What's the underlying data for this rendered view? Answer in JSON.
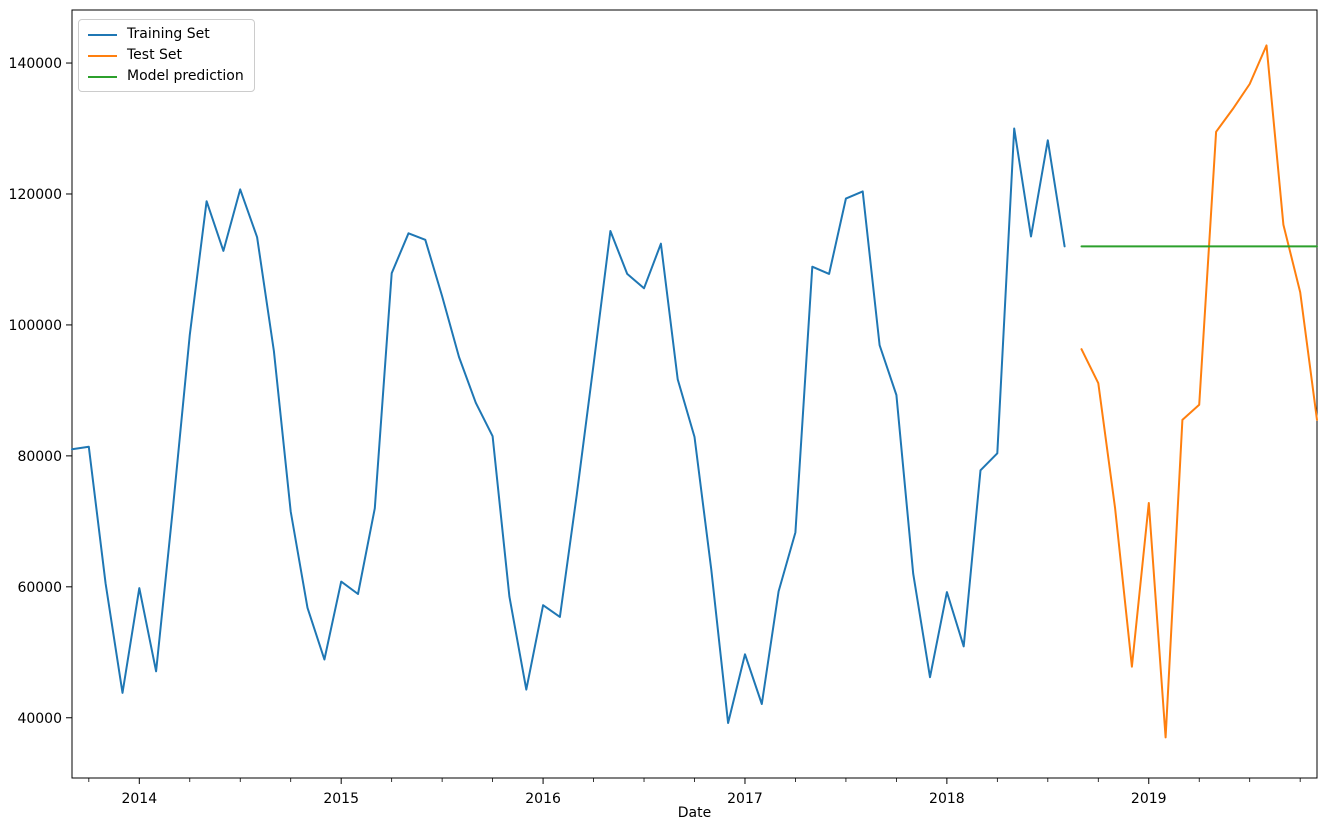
{
  "chart_data": {
    "type": "line",
    "title": "",
    "xlabel": "Date",
    "ylabel": "",
    "grid": false,
    "legend_position": "top-left",
    "ylim": [
      30800,
      148100
    ],
    "yticks": [
      {
        "value": 40000,
        "label": "40000"
      },
      {
        "value": 60000,
        "label": "60000"
      },
      {
        "value": 80000,
        "label": "80000"
      },
      {
        "value": 100000,
        "label": "100000"
      },
      {
        "value": 120000,
        "label": "120000"
      },
      {
        "value": 140000,
        "label": "140000"
      }
    ],
    "xticks_major": [
      {
        "month": "2014-01",
        "label": "2014"
      },
      {
        "month": "2015-01",
        "label": "2015"
      },
      {
        "month": "2016-01",
        "label": "2016"
      },
      {
        "month": "2017-01",
        "label": "2017"
      },
      {
        "month": "2018-01",
        "label": "2018"
      },
      {
        "month": "2019-01",
        "label": "2019"
      }
    ],
    "xticks_minor_every_months": 3,
    "x_monthly": [
      "2013-09",
      "2013-10",
      "2013-11",
      "2013-12",
      "2014-01",
      "2014-02",
      "2014-03",
      "2014-04",
      "2014-05",
      "2014-06",
      "2014-07",
      "2014-08",
      "2014-09",
      "2014-10",
      "2014-11",
      "2014-12",
      "2015-01",
      "2015-02",
      "2015-03",
      "2015-04",
      "2015-05",
      "2015-06",
      "2015-07",
      "2015-08",
      "2015-09",
      "2015-10",
      "2015-11",
      "2015-12",
      "2016-01",
      "2016-02",
      "2016-03",
      "2016-04",
      "2016-05",
      "2016-06",
      "2016-07",
      "2016-08",
      "2016-09",
      "2016-10",
      "2016-11",
      "2016-12",
      "2017-01",
      "2017-02",
      "2017-03",
      "2017-04",
      "2017-05",
      "2017-06",
      "2017-07",
      "2017-08",
      "2017-09",
      "2017-10",
      "2017-11",
      "2017-12",
      "2018-01",
      "2018-02",
      "2018-03",
      "2018-04",
      "2018-05",
      "2018-06",
      "2018-07",
      "2018-08",
      "2018-09",
      "2018-10",
      "2018-11",
      "2018-12",
      "2019-01",
      "2019-02",
      "2019-03",
      "2019-04",
      "2019-05",
      "2019-06",
      "2019-07",
      "2019-08",
      "2019-09",
      "2019-10",
      "2019-11"
    ],
    "series": [
      {
        "name": "Training Set",
        "color": "#1f77b4",
        "start_month": "2013-09",
        "values": [
          81000,
          81400,
          60500,
          43800,
          59800,
          47100,
          72000,
          98500,
          118900,
          111300,
          120700,
          113400,
          96000,
          71500,
          56800,
          48900,
          60800,
          58900,
          72000,
          107900,
          114000,
          113000,
          104400,
          95100,
          88100,
          83000,
          58500,
          44300,
          57200,
          55400,
          74000,
          94000,
          114350,
          107800,
          105600,
          112400,
          91700,
          82900,
          62600,
          39200,
          49700,
          42100,
          59300,
          68300,
          108900,
          107800,
          119300,
          120400,
          96900,
          89300,
          62000,
          46200,
          59200,
          50900,
          77800,
          80400,
          130000,
          113500,
          128200,
          112000
        ]
      },
      {
        "name": "Test Set",
        "color": "#ff7f0e",
        "start_month": "2018-09",
        "values": [
          96300,
          91100,
          72000,
          47800,
          72800,
          37000,
          85500,
          87800,
          129500,
          133000,
          136800,
          142700,
          115300,
          105000,
          85500
        ]
      },
      {
        "name": "Model prediction",
        "color": "#2ca02c",
        "start_month": "2018-09",
        "values": [
          112000,
          112000,
          112000,
          112000,
          112000,
          112000,
          112000,
          112000,
          112000,
          112000,
          112000,
          112000,
          112000,
          112000,
          112000
        ]
      }
    ]
  }
}
